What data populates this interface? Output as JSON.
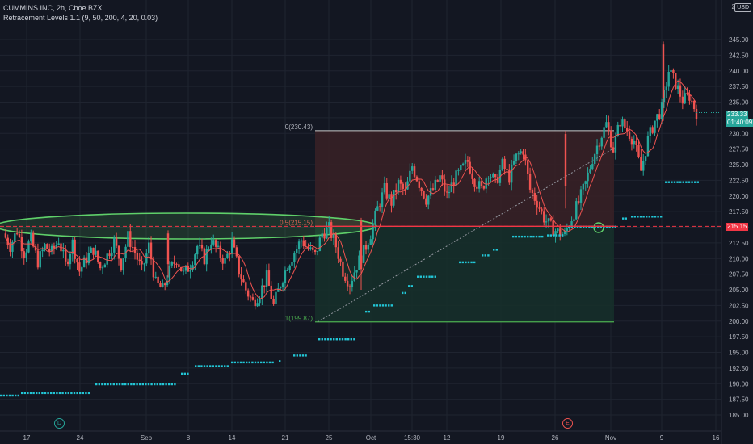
{
  "header": {
    "symbol_line": "CUMMINS INC, 2h, Cboe BZX",
    "indicator_line": "Retracement Levels 1.1 (9, 50, 200, 4, 20, 0.03)",
    "currency": "USD",
    "axis_top_label": "2"
  },
  "price_tags": {
    "last_price": "233.33",
    "countdown": "01:40:09",
    "line_price": "215.15"
  },
  "events": {
    "dividend_label": "D",
    "earnings_label": "E"
  },
  "colors": {
    "background": "#131722",
    "up": "#26a69a",
    "down": "#ef5350",
    "dots": "#22c6d6",
    "ellipse": "#5fd06a",
    "fib_top_fill": "#3a2126",
    "fib_bottom_fill": "#16302a",
    "level_line": "#f23645"
  },
  "chart_data": {
    "type": "candlestick",
    "x_tick_labels": [
      "17",
      "24",
      "Sep",
      "8",
      "14",
      "21",
      "25",
      "Oct",
      "15:30",
      "12",
      "19",
      "26",
      "Nov",
      "9",
      "16"
    ],
    "y_ticks": [
      185,
      187.5,
      190,
      192.5,
      195,
      197.5,
      200,
      202.5,
      205,
      207.5,
      210,
      212.5,
      215,
      217.5,
      220,
      222.5,
      225,
      227.5,
      230,
      232.5,
      235,
      237.5,
      240,
      242.5,
      245
    ],
    "y_tick_labels": [
      "185.00",
      "187.50",
      "190.00",
      "192.50",
      "195.00",
      "197.50",
      "200.00",
      "202.50",
      "205.00",
      "207.50",
      "210.00",
      "212.50",
      "215.00",
      "217.50",
      "220.00",
      "222.50",
      "225.00",
      "227.50",
      "230.00",
      "232.50",
      "235.00",
      "237.50",
      "240.00",
      "242.50",
      "245.00"
    ],
    "ylim": [
      183,
      247.5
    ],
    "fibonacci": {
      "levels": [
        {
          "ratio": "0",
          "price": 230.43,
          "label": "0(230.43)"
        },
        {
          "ratio": "0.5",
          "price": 215.15,
          "label": "0.5(215.15)"
        },
        {
          "ratio": "1",
          "price": 199.87,
          "label": "1(199.87)"
        }
      ]
    },
    "horizontal_level": 215.15,
    "last_price": 233.33,
    "close_path": [
      214,
      212,
      214.5,
      211,
      213,
      209.5,
      212,
      211,
      213,
      209,
      212.5,
      208,
      210,
      211.5,
      208.5,
      210.5,
      212.8,
      209,
      213.5,
      211,
      208,
      212,
      206,
      205,
      208,
      210,
      207.5,
      209,
      212,
      210,
      213,
      211,
      209.5,
      212.5,
      208,
      205,
      203,
      204.5,
      207,
      202.5,
      206,
      209,
      211,
      213,
      211.5,
      210.5,
      214,
      214.8,
      212,
      208,
      206,
      209,
      211,
      214,
      218,
      221,
      219,
      222,
      220.5,
      224.8,
      222,
      219.5,
      221,
      223,
      220,
      222.5,
      224,
      225.5,
      222.5,
      221,
      224,
      222,
      225,
      223,
      226.2,
      227.4,
      221,
      219,
      216.5,
      215,
      214.2,
      213.8,
      216.5,
      219,
      222,
      226,
      229,
      231.5,
      227.5,
      232,
      230.5,
      228.8,
      224,
      229,
      232,
      234,
      240,
      238,
      235.3,
      236,
      233.3
    ],
    "dots": [
      {
        "price": 188.1,
        "from": 0,
        "to": 22
      },
      {
        "price": 188.5,
        "from": 26,
        "to": 111
      },
      {
        "price": 189.9,
        "from": 118,
        "to": 216
      },
      {
        "price": 191.6,
        "from": 224,
        "to": 232
      },
      {
        "price": 192.8,
        "from": 241,
        "to": 283
      },
      {
        "price": 193.4,
        "from": 286,
        "to": 338
      },
      {
        "price": 193.6,
        "from": 345,
        "to": 348
      },
      {
        "price": 194.5,
        "from": 363,
        "to": 380
      },
      {
        "price": 197.1,
        "from": 394,
        "to": 440
      },
      {
        "price": 201.5,
        "from": 452,
        "to": 456
      },
      {
        "price": 202.5,
        "from": 462,
        "to": 484
      },
      {
        "price": 204.5,
        "from": 497,
        "to": 503
      },
      {
        "price": 205.6,
        "from": 505,
        "to": 511
      },
      {
        "price": 207.1,
        "from": 516,
        "to": 538
      },
      {
        "price": 209.4,
        "from": 568,
        "to": 588
      },
      {
        "price": 210.5,
        "from": 596,
        "to": 605
      },
      {
        "price": 211.4,
        "from": 610,
        "to": 615
      },
      {
        "price": 213.5,
        "from": 634,
        "to": 672
      },
      {
        "price": 213.7,
        "from": 677,
        "to": 698
      },
      {
        "price": 215.1,
        "from": 703,
        "to": 764
      },
      {
        "price": 216.4,
        "from": 770,
        "to": 775
      },
      {
        "price": 216.7,
        "from": 781,
        "to": 818
      },
      {
        "price": 222.2,
        "from": 823,
        "to": 866
      }
    ]
  }
}
